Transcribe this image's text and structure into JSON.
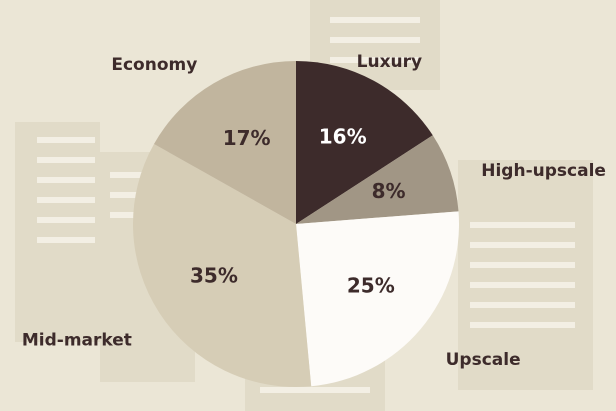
{
  "chart_data": {
    "type": "pie",
    "categories": [
      "Luxury",
      "High-upscale",
      "Upscale",
      "Mid-market",
      "Economy"
    ],
    "values": [
      16,
      8,
      25,
      35,
      17
    ],
    "value_labels": [
      "16%",
      "8%",
      "25%",
      "35%",
      "17%"
    ],
    "colors": [
      "#3d2b2b",
      "#a19685",
      "#fdfbf8",
      "#d6cdb6",
      "#c1b59e"
    ]
  }
}
